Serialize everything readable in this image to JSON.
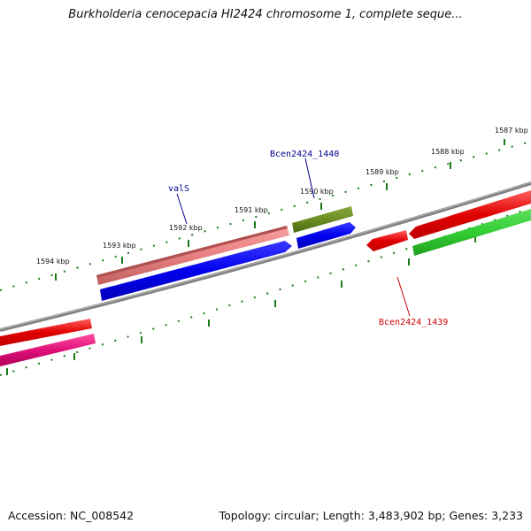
{
  "title": "Burkholderia cenocepacia HI2424 chromosome 1, complete seque...",
  "footer": {
    "accession": "Accession: NC_008542",
    "summary": "Topology: circular; Length: 3,483,902 bp; Genes: 3,233"
  },
  "ruler_labels": {
    "k1587": "1587 kbp",
    "k1588": "1588 kbp",
    "k1589": "1589 kbp",
    "k1590": "1590 kbp",
    "k1591": "1591 kbp",
    "k1592": "1592 kbp",
    "k1593": "1593 kbp",
    "k1594": "1594 kbp"
  },
  "gene_labels": {
    "valS": "valS",
    "bcen1440": "Bcen2424_1440",
    "bcen1439": "Bcen2424_1439"
  },
  "colors": {
    "backbone": "#808080",
    "tick": "#1a7a1a",
    "label_blue": "#00008b",
    "label_red": "#cc0000",
    "red": "#e00000",
    "pink": "#f08080",
    "blue": "#0000ee",
    "olive": "#6b8e23",
    "green": "#32cd32",
    "magenta": "#e0107a"
  }
}
